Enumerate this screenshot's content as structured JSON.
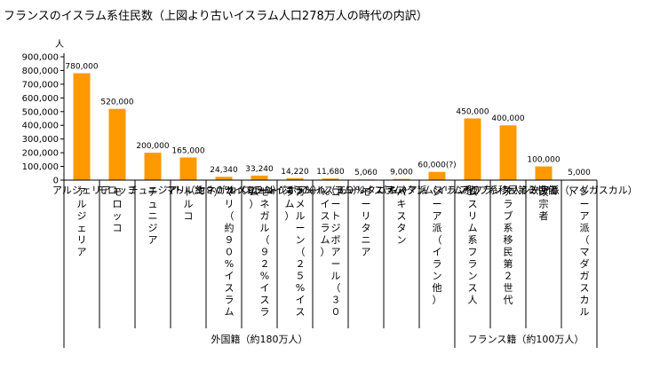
{
  "chart_data": {
    "type": "bar",
    "title": "フランスのイスラム系住民数（上図より古いイスラム人口278万人の時代の内訳）",
    "ylabel": "人",
    "ylim": [
      0,
      900000
    ],
    "yticks": [
      0,
      100000,
      200000,
      300000,
      400000,
      500000,
      600000,
      700000,
      800000,
      900000
    ],
    "ytick_labels": [
      "0",
      "100,000",
      "200,000",
      "300,000",
      "400,000",
      "500,000",
      "600,000",
      "700,000",
      "800,000",
      "900,000"
    ],
    "bar_color": "#ff9900",
    "categories": [
      "アルジェリア",
      "モロッコ",
      "チュニジア",
      "トルコ",
      "マリ（約９０%イスラム）",
      "セネガル（９２%イスラム）",
      "カメルーン（２５%イスラム）",
      "コートジボアール（３０%イスラム）",
      "モーリタニア",
      "パキスタン",
      "シーア派（イラン他）",
      "ムスリム系フランス人",
      "アラブ系移民第２世代",
      "改宗者",
      "シーア派（マダガスカル）"
    ],
    "values": [
      780000,
      520000,
      200000,
      165000,
      24340,
      33240,
      14220,
      11680,
      5060,
      9000,
      60000,
      450000,
      400000,
      100000,
      5000
    ],
    "data_labels": [
      "780,000",
      "520,000",
      "200,000",
      "165,000",
      "24,340",
      "33,240",
      "14,220",
      "11,680",
      "5,060",
      "9,000",
      "60,000(?)",
      "450,000",
      "400,000",
      "100,000",
      "5,000"
    ],
    "groups": [
      {
        "label": "外国籍（約180万人）",
        "start": 0,
        "end": 10
      },
      {
        "label": "フランス籍（約100万人）",
        "start": 11,
        "end": 14
      }
    ]
  }
}
